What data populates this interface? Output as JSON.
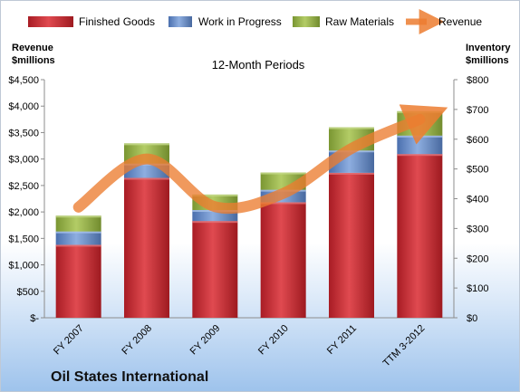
{
  "chart_data": {
    "type": "bar",
    "stacked": true,
    "title": "12-Month Periods",
    "company": "Oil States International",
    "categories": [
      "FY 2007",
      "FY 2008",
      "FY 2009",
      "FY 2010",
      "FY 2011",
      "TTM 3-2012"
    ],
    "series": [
      {
        "name": "Finished Goods",
        "axis": "right",
        "color": "#c0272d",
        "values": [
          245,
          470,
          325,
          388,
          487,
          550
        ]
      },
      {
        "name": "Work in Progress",
        "axis": "right",
        "color": "#5b84c4",
        "values": [
          45,
          48,
          37,
          42,
          75,
          62
        ]
      },
      {
        "name": "Raw Materials",
        "axis": "right",
        "color": "#8fac3e",
        "values": [
          53,
          68,
          52,
          58,
          78,
          82
        ]
      },
      {
        "name": "Revenue",
        "axis": "left",
        "type": "line",
        "color": "#ec7c30",
        "values": [
          2090,
          3000,
          2100,
          2350,
          3200,
          3750
        ]
      }
    ],
    "left_axis": {
      "label": "Revenue $millions",
      "ylim": [
        0,
        4500
      ],
      "ticks": [
        "$-",
        "$500",
        "$1,000",
        "$1,500",
        "$2,000",
        "$2,500",
        "$3,000",
        "$3,500",
        "$4,000",
        "$4,500"
      ]
    },
    "right_axis": {
      "label": "Inventory $millions",
      "ylim": [
        0,
        800
      ],
      "ticks": [
        "$0",
        "$100",
        "$200",
        "$300",
        "$400",
        "$500",
        "$600",
        "$700",
        "$800"
      ]
    },
    "legend": {
      "position": "top",
      "entries": [
        "Finished Goods",
        "Work in Progress",
        "Raw Materials",
        "Revenue"
      ]
    },
    "grid": false
  }
}
